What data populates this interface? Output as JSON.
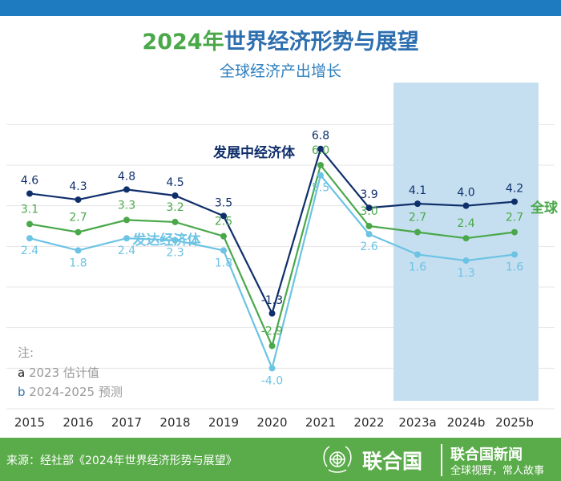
{
  "title": {
    "year_part": "2024年",
    "rest": "世界经济形势与展望"
  },
  "subtitle": "全球经济产出增长",
  "chart_data": {
    "type": "line",
    "title": "2024年世界经济形势与展望",
    "subtitle": "全球经济产出增长",
    "categories": [
      "2015",
      "2016",
      "2017",
      "2018",
      "2019",
      "2020",
      "2021",
      "2022",
      "2023a",
      "2024b",
      "2025b"
    ],
    "ylim": [
      -6,
      9
    ],
    "grid": true,
    "shaded_categories": [
      "2023a",
      "2024b",
      "2025b"
    ],
    "series": [
      {
        "name": "发展中经济体",
        "color": "#0f2f6b",
        "label_color": "#0f2f6b",
        "values": [
          4.6,
          4.3,
          4.8,
          4.5,
          3.5,
          -1.3,
          6.8,
          3.9,
          4.1,
          4.0,
          4.2
        ]
      },
      {
        "name": "全球",
        "color": "#4aa84a",
        "label_color": "#4aa84a",
        "values": [
          3.1,
          2.7,
          3.3,
          3.2,
          2.5,
          -2.9,
          6.0,
          3.0,
          2.7,
          2.4,
          2.7
        ]
      },
      {
        "name": "发达经济体",
        "color": "#6cc3e3",
        "label_color": "#6cc3e3",
        "values": [
          2.4,
          1.8,
          2.4,
          2.3,
          1.8,
          -4.0,
          5.5,
          2.6,
          1.6,
          1.3,
          1.6
        ]
      }
    ],
    "notes": {
      "heading": "注:",
      "items": [
        {
          "marker": "a",
          "text": "2023 估计值"
        },
        {
          "marker": "b",
          "text": "2024-2025 预测"
        }
      ]
    }
  },
  "footer": {
    "source": "来源：经社部《2024年世界经济形势与展望》",
    "un_name": "联合国",
    "news_title": "联合国新闻",
    "news_slogan": "全球视野，常人故事"
  },
  "colors": {
    "green": "#5aab4a",
    "blue": "#1e7bbf",
    "shade": "#c5dff0"
  }
}
